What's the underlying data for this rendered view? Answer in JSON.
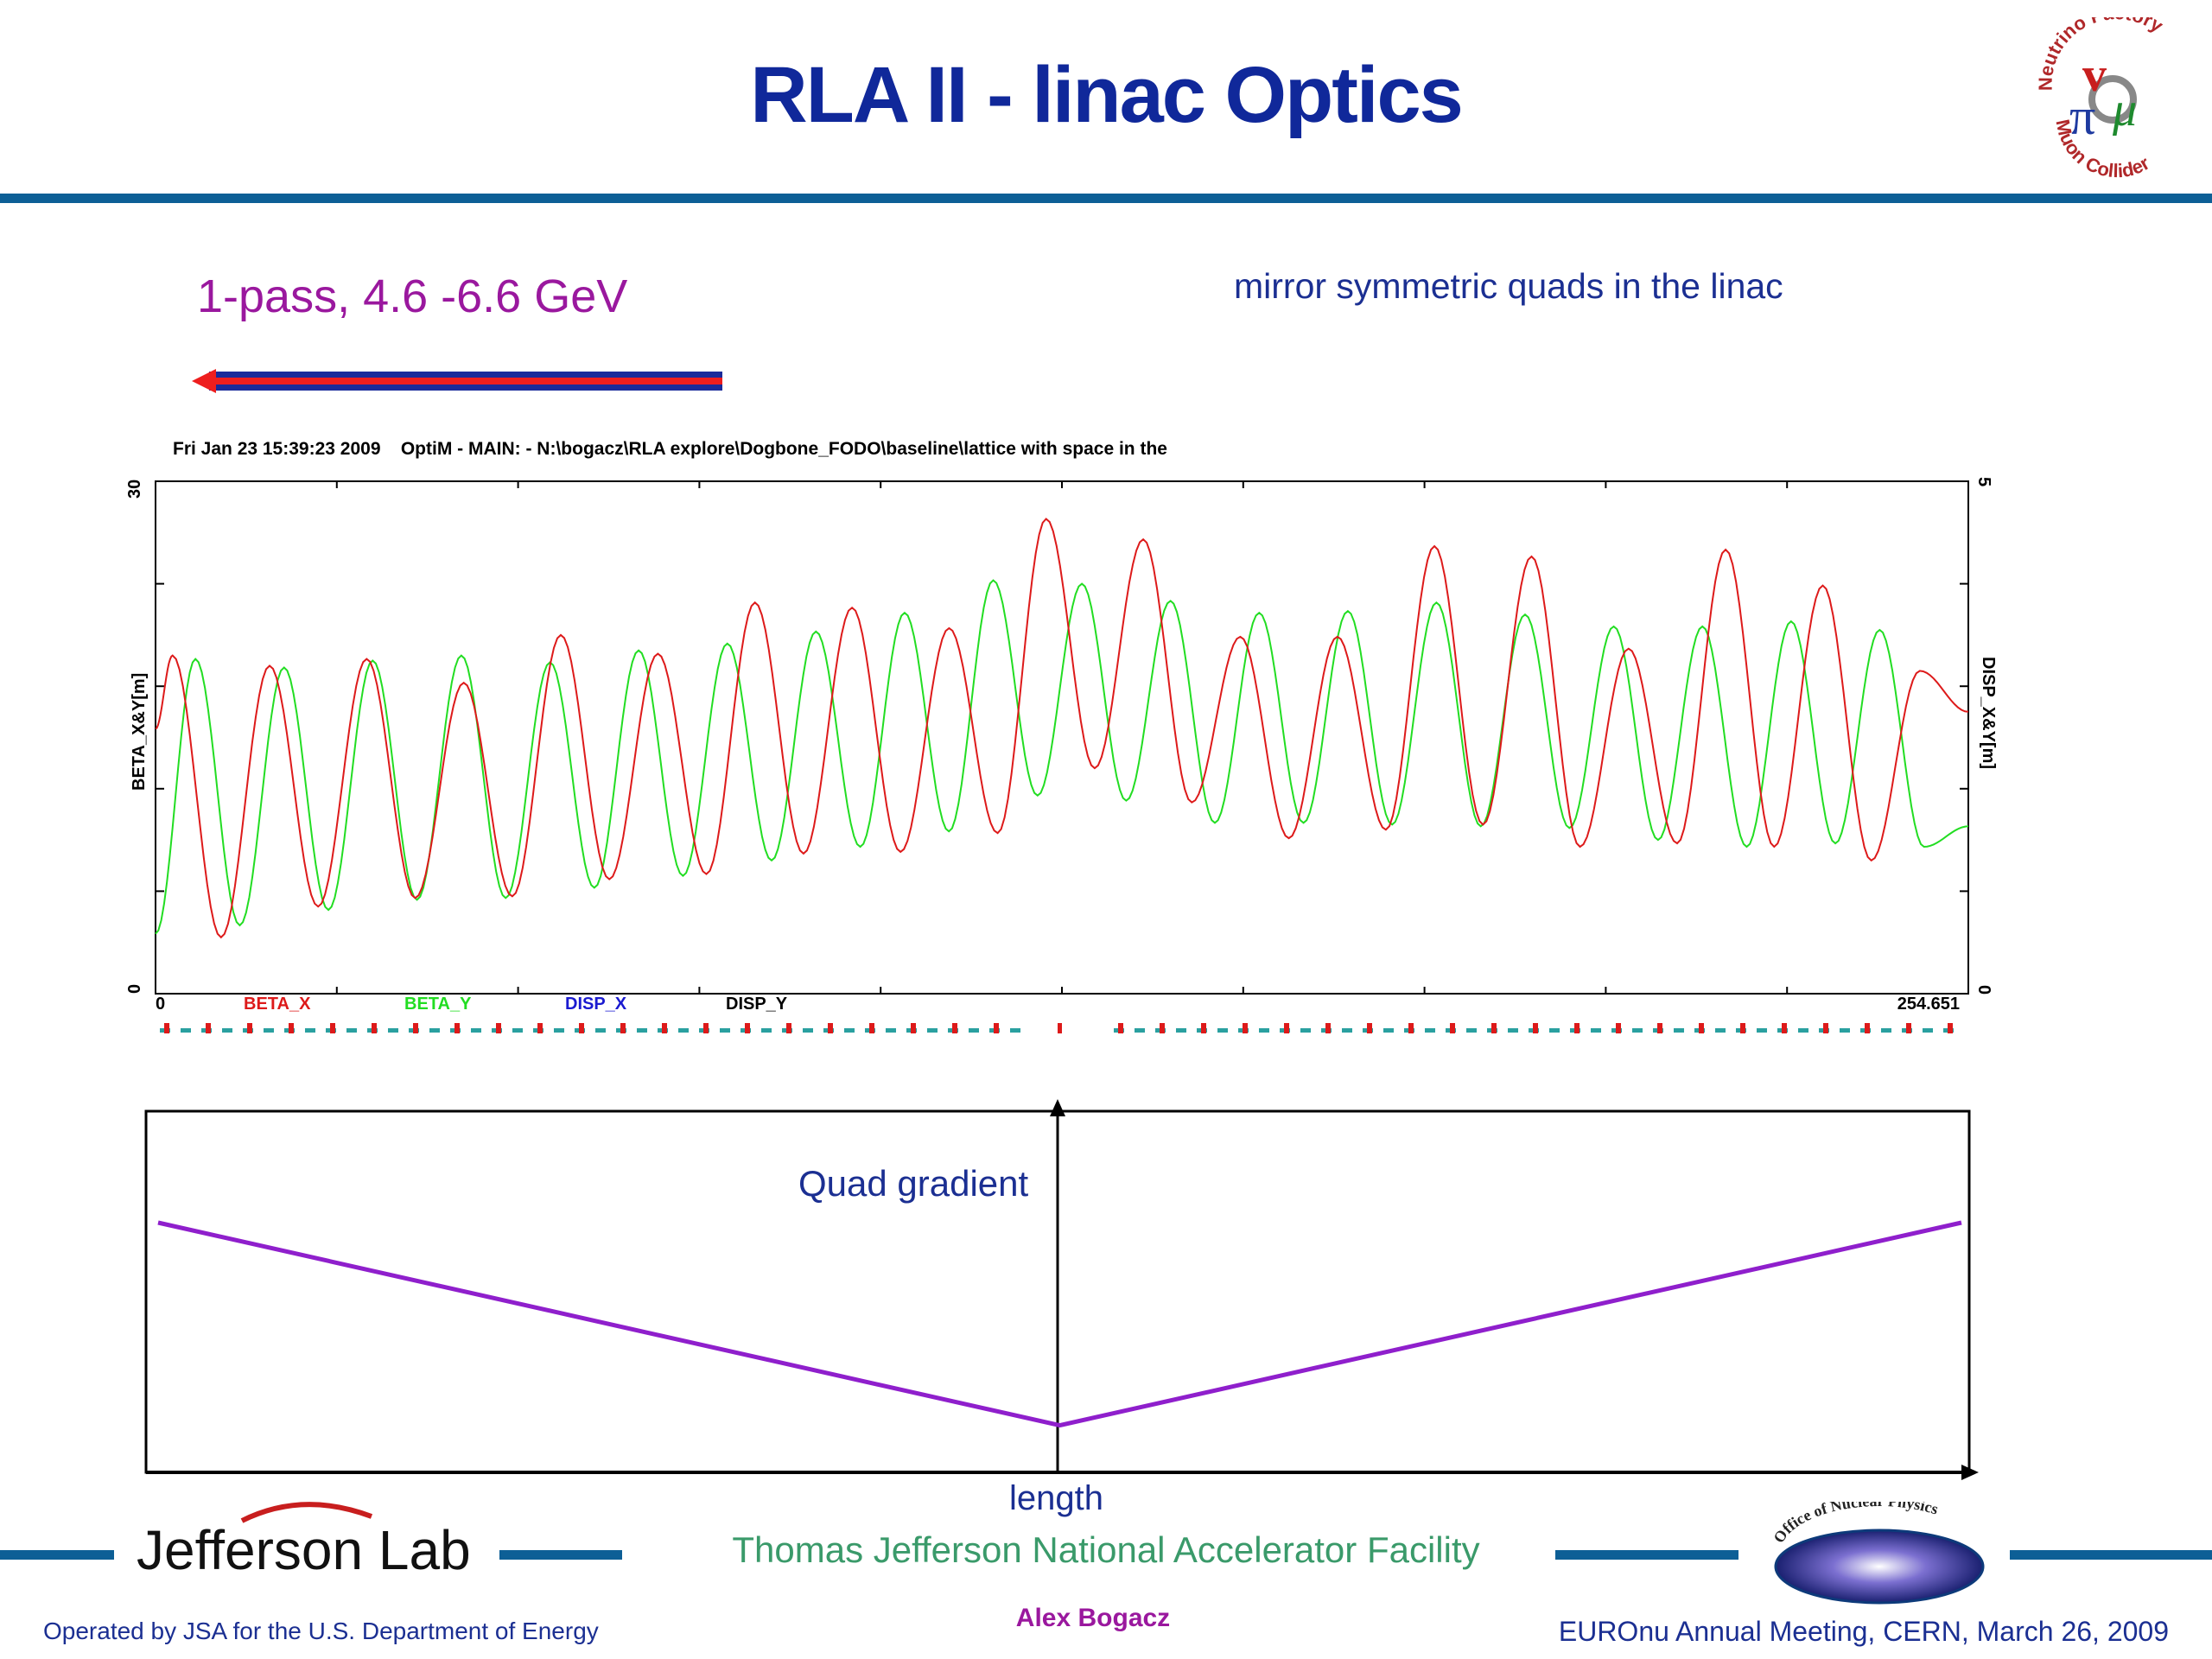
{
  "slide": {
    "title": "RLA II - linac Optics",
    "pass_label": "1-pass, 4.6 -6.6 GeV",
    "mirror_note": "mirror symmetric quads in the linac"
  },
  "optics_plot": {
    "header": "Fri Jan 23 15:39:23 2009    OptiM - MAIN: - N:\\bogacz\\RLA explore\\Dogbone_FODO\\baseline\\lattice with space in the",
    "ylabel_left": "BETA_X&Y[m]",
    "ylabel_right": "DISP_X&Y[m]",
    "y_left_min": "0",
    "y_left_max": "30",
    "y_right_min": "0",
    "y_right_max": "5",
    "x_min": "0",
    "x_max": "254.651",
    "legend": [
      "BETA_X",
      "BETA_Y",
      "DISP_X",
      "DISP_Y"
    ],
    "colors": {
      "beta_x": "#dd1a1a",
      "beta_y": "#22dd22",
      "disp_x": "#1a1ad0",
      "disp_y": "#000000"
    }
  },
  "gradient_plot": {
    "ylabel": "Quad gradient",
    "xlabel": "length",
    "line_color": "#8f1fcc"
  },
  "chart_data": [
    {
      "type": "line",
      "title": "",
      "xlabel": "",
      "ylabel": "BETA_X&Y[m]",
      "y2label": "DISP_X&Y[m]",
      "xlim": [
        0,
        254.651
      ],
      "ylim": [
        0,
        30
      ],
      "y2lim": [
        0,
        5
      ],
      "series": [
        {
          "name": "BETA_X",
          "peaks": [
            19.8,
            19.2,
            19.6,
            18.2,
            21.0,
            19.9,
            22.9,
            22.6,
            21.4,
            27.8,
            26.6,
            20.9,
            20.9,
            26.2,
            25.6,
            20.2,
            26.0,
            23.9,
            18.9
          ],
          "minima": [
            3.3,
            5.1,
            5.6,
            5.7,
            6.7,
            7.0,
            8.2,
            8.3,
            9.4,
            13.2,
            11.2,
            9.1,
            9.6,
            9.9,
            8.6,
            8.8,
            8.6,
            7.8
          ]
        },
        {
          "name": "BETA_Y",
          "peaks": [
            19.6,
            19.1,
            19.5,
            19.8,
            19.4,
            20.1,
            20.5,
            21.2,
            22.3,
            24.2,
            24.0,
            23.0,
            22.3,
            22.4,
            22.9,
            22.2,
            21.5,
            21.5,
            21.8,
            21.3
          ],
          "minima": [
            3.5,
            4.0,
            4.9,
            5.5,
            5.6,
            6.2,
            6.9,
            7.8,
            8.6,
            9.5,
            11.6,
            11.3,
            10.0,
            10.0,
            9.9,
            9.8,
            9.7,
            9.0,
            8.6,
            8.8,
            8.6
          ]
        },
        {
          "name": "DISP_X",
          "values": []
        },
        {
          "name": "DISP_Y",
          "values": []
        }
      ]
    },
    {
      "type": "line",
      "title": "",
      "xlabel": "length",
      "ylabel": "Quad gradient",
      "series": [
        {
          "name": "",
          "x": [
            0,
            0.5,
            1
          ],
          "y": [
            1.0,
            0.08,
            1.0
          ]
        }
      ]
    }
  ]
}
